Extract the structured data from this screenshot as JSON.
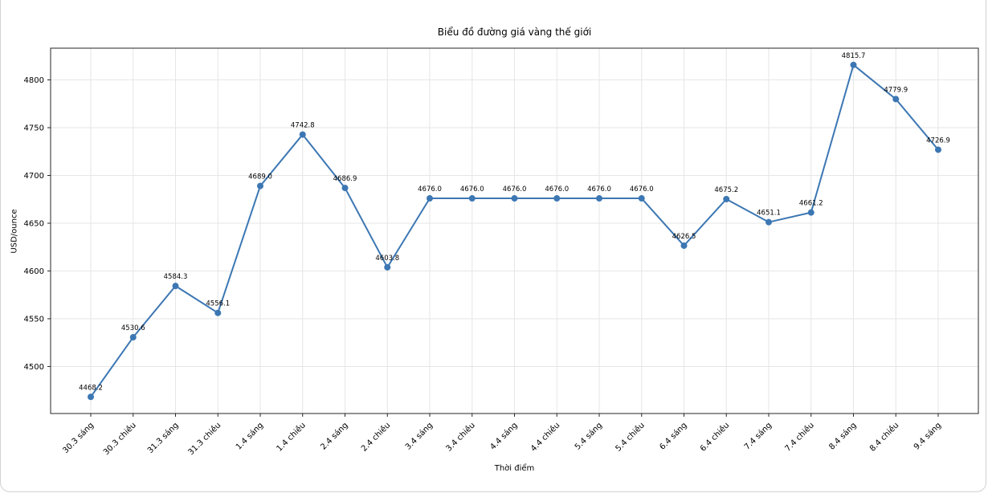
{
  "chart_data": {
    "type": "line",
    "title": "Biểu đồ đường giá vàng thế giới",
    "xlabel": "Thời điểm",
    "ylabel": "USD/ounce",
    "categories": [
      "30.3 sáng",
      "30.3 chiều",
      "31.3 sáng",
      "31.3 chiều",
      "1.4 sáng",
      "1.4 chiều",
      "2.4 sáng",
      "2.4 chiều",
      "3.4 sáng",
      "3.4 chiều",
      "4.4 sáng",
      "4.4 chiều",
      "5.4 sáng",
      "5.4 chiều",
      "6.4 sáng",
      "6.4 chiều",
      "7.4 sáng",
      "7.4 chiều",
      "8.4 sáng",
      "8.4 chiều",
      "9.4 sáng"
    ],
    "values": [
      4468.2,
      4530.6,
      4584.3,
      4556.1,
      4689.0,
      4742.8,
      4686.9,
      4603.8,
      4676.0,
      4676.0,
      4676.0,
      4676.0,
      4676.0,
      4676.0,
      4626.5,
      4675.2,
      4651.1,
      4661.2,
      4815.7,
      4779.9,
      4726.9
    ],
    "value_labels": [
      "4468.2",
      "4530.6",
      "4584.3",
      "4556.1",
      "4689.0",
      "4742.8",
      "4686.9",
      "4603.8",
      "4676.0",
      "4676.0",
      "4676.0",
      "4676.0",
      "4676.0",
      "4676.0",
      "4626.5",
      "4675.2",
      "4651.1",
      "4661.2",
      "4815.7",
      "4779.9",
      "4726.9"
    ],
    "yticks": [
      4500,
      4550,
      4600,
      4650,
      4700,
      4750,
      4800
    ],
    "ylim": [
      4450.8,
      4833.2
    ],
    "grid": true,
    "legend": "none",
    "x_tick_rotation": 45,
    "line_color": "#3c77b3",
    "marker": "circle"
  },
  "style": {
    "grid_color": "#e6e6e6",
    "spine_color": "#262626",
    "tick_color": "#262626",
    "annotation_color": "#1a1a1a",
    "window_border_color": "#d2d2d2"
  }
}
